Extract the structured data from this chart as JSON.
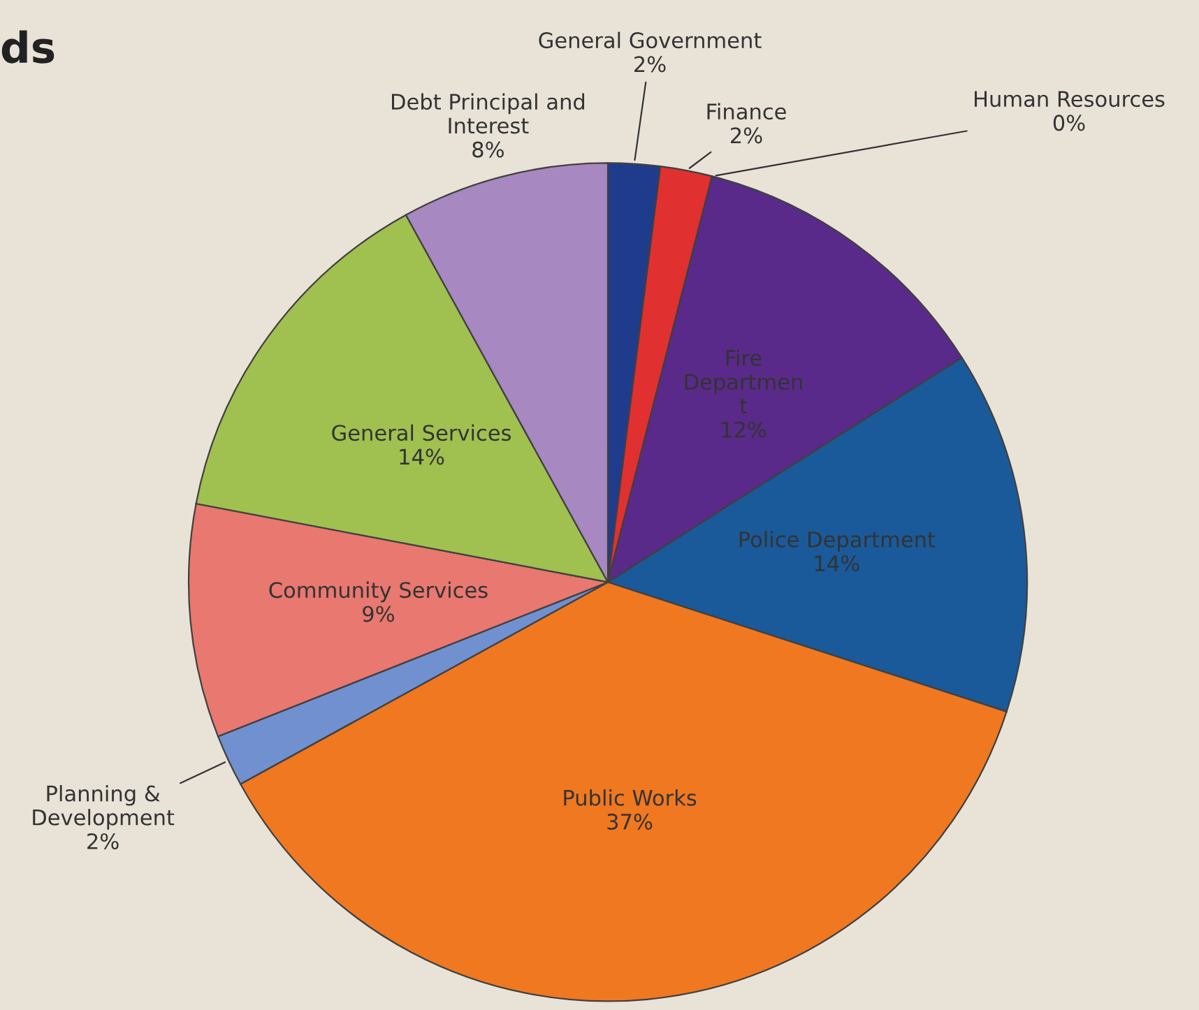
{
  "chart_data": {
    "type": "pie",
    "title": "ds",
    "categories": [
      "General Government",
      "Finance",
      "Human Resources",
      "Fire\nDepartmen\nt",
      "Police Department",
      "Public Works",
      "Planning &\nDevelopment",
      "Community Services",
      "General Services",
      "Debt Principal and\nInterest"
    ],
    "values": [
      2,
      2,
      0,
      12,
      14,
      37,
      2,
      9,
      14,
      8
    ],
    "colors": [
      "#1f3c8c",
      "#e03030",
      "#8a6a9a",
      "#5a2a8a",
      "#1a5a9a",
      "#f07820",
      "#7090d0",
      "#e87870",
      "#a0c050",
      "#a888c0"
    ],
    "value_labels": [
      "2%",
      "2%",
      "0%",
      "12%",
      "14%",
      "37%",
      "2%",
      "9%",
      "14%",
      "8%"
    ]
  }
}
